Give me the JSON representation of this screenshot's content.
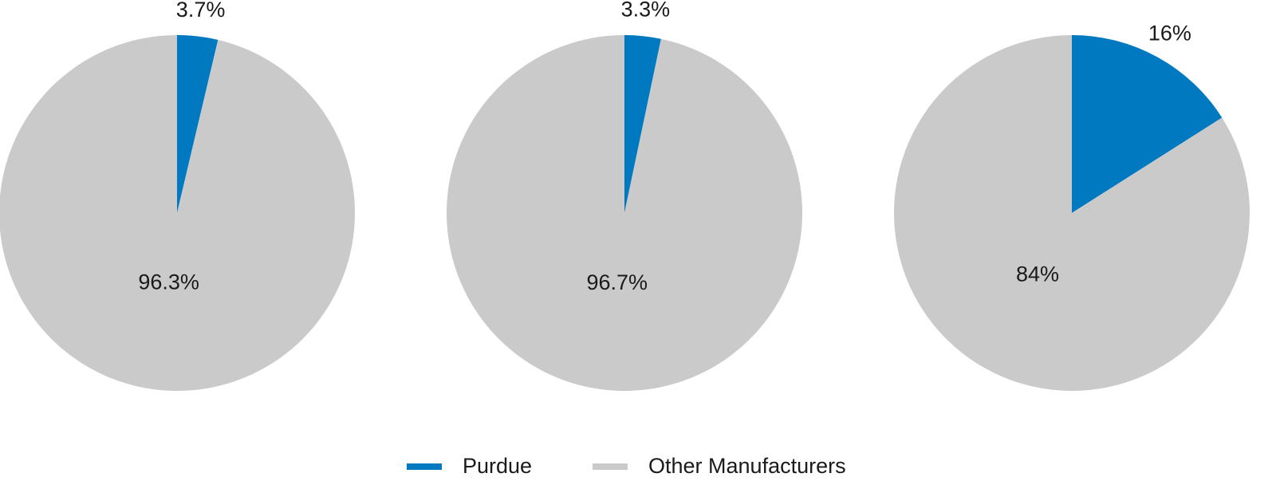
{
  "chart_data": [
    {
      "type": "pie",
      "values": [
        3.7,
        96.3
      ],
      "value_labels": [
        "3.7%",
        "96.3%"
      ]
    },
    {
      "type": "pie",
      "values": [
        3.3,
        96.7
      ],
      "value_labels": [
        "3.3%",
        "96.7%"
      ]
    },
    {
      "type": "pie",
      "values": [
        16,
        84
      ],
      "value_labels": [
        "16%",
        "84%"
      ]
    }
  ],
  "legend": {
    "entries": [
      {
        "name": "Purdue",
        "color": "#0079c1"
      },
      {
        "name": "Other Manufacturers",
        "color": "#cacaca"
      }
    ]
  }
}
